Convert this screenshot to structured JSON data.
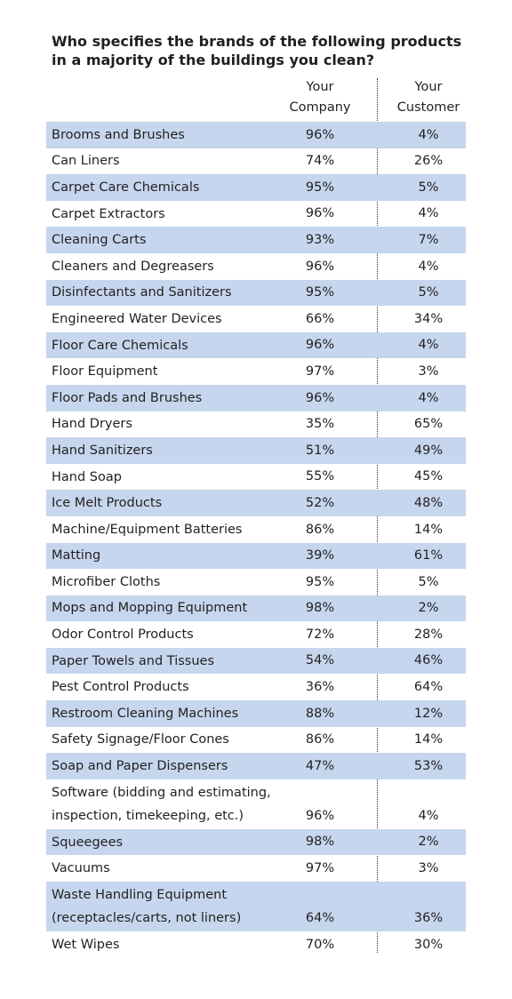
{
  "header": {
    "title": [
      "Who specifies the brands of the following products",
      "in a majority of the buildings you clean?"
    ]
  },
  "table": {
    "columns": [
      [
        "Your",
        "Company"
      ],
      [
        "Your",
        "Customer"
      ]
    ],
    "rows": [
      [
        [
          "Brooms and Brushes"
        ],
        "96%",
        "4%"
      ],
      [
        [
          "Can Liners"
        ],
        "74%",
        "26%"
      ],
      [
        [
          "Carpet Care Chemicals"
        ],
        "95%",
        "5%"
      ],
      [
        [
          "Carpet Extractors"
        ],
        "96%",
        "4%"
      ],
      [
        [
          "Cleaning Carts"
        ],
        "93%",
        "7%"
      ],
      [
        [
          "Cleaners and Degreasers"
        ],
        "96%",
        "4%"
      ],
      [
        [
          "Disinfectants and Sanitizers"
        ],
        "95%",
        "5%"
      ],
      [
        [
          "Engineered Water Devices"
        ],
        "66%",
        "34%"
      ],
      [
        [
          "Floor Care Chemicals"
        ],
        "96%",
        "4%"
      ],
      [
        [
          "Floor Equipment"
        ],
        "97%",
        "3%"
      ],
      [
        [
          "Floor Pads and Brushes"
        ],
        "96%",
        "4%"
      ],
      [
        [
          "Hand Dryers"
        ],
        "35%",
        "65%"
      ],
      [
        [
          "Hand Sanitizers"
        ],
        "51%",
        "49%"
      ],
      [
        [
          "Hand Soap"
        ],
        "55%",
        "45%"
      ],
      [
        [
          "Ice Melt Products"
        ],
        "52%",
        "48%"
      ],
      [
        [
          "Machine/Equipment Batteries"
        ],
        "86%",
        "14%"
      ],
      [
        [
          "Matting"
        ],
        "39%",
        "61%"
      ],
      [
        [
          "Microfiber Cloths"
        ],
        "95%",
        "5%"
      ],
      [
        [
          "Mops and Mopping Equipment"
        ],
        "98%",
        "2%"
      ],
      [
        [
          "Odor Control Products"
        ],
        "72%",
        "28%"
      ],
      [
        [
          "Paper Towels and Tissues"
        ],
        "54%",
        "46%"
      ],
      [
        [
          "Pest Control Products"
        ],
        "36%",
        "64%"
      ],
      [
        [
          "Restroom Cleaning Machines"
        ],
        "88%",
        "12%"
      ],
      [
        [
          "Safety Signage/Floor Cones"
        ],
        "86%",
        "14%"
      ],
      [
        [
          "Soap and Paper Dispensers"
        ],
        "47%",
        "53%"
      ],
      [
        [
          "Software (bidding and estimating,",
          "inspection, timekeeping, etc.)"
        ],
        "96%",
        "4%"
      ],
      [
        [
          "Squeegees"
        ],
        "98%",
        "2%"
      ],
      [
        [
          "Vacuums"
        ],
        "97%",
        "3%"
      ],
      [
        [
          "Waste Handling Equipment",
          "(receptacles/carts, not liners)"
        ],
        "64%",
        "36%"
      ],
      [
        [
          "Wet Wipes"
        ],
        "70%",
        "30%"
      ]
    ]
  }
}
